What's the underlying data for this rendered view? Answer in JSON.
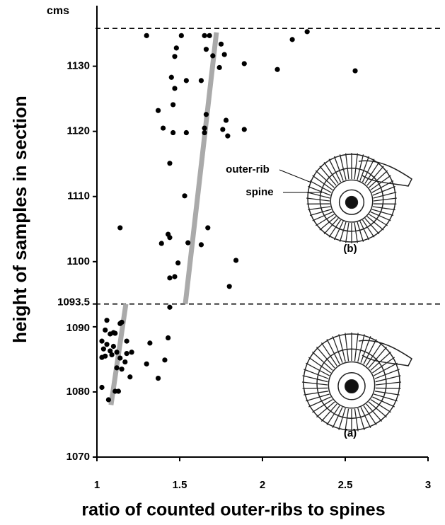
{
  "chart_data": {
    "type": "scatter",
    "y_label": "height of samples in section",
    "x_label": "ratio of counted outer-ribs to spines",
    "y_unit": "cms",
    "annotations": [
      "outer-rib",
      "spine",
      "(b)",
      "(a)"
    ],
    "xlim": [
      1,
      3
    ],
    "ylim": [
      1070,
      1139.3
    ],
    "xticks": [
      1,
      1.5,
      2,
      2.5,
      3
    ],
    "yticks": [
      1070,
      1080,
      1090,
      1093.5,
      1100,
      1110,
      1120,
      1130
    ],
    "hlines": [
      1093.5,
      1135.8
    ],
    "color": "#000000",
    "trend_color": "#aaaaaa",
    "trend_lines": [
      {
        "x": [
          1.085,
          1.175
        ],
        "y": [
          1078,
          1093.5
        ]
      },
      {
        "x": [
          1.534,
          1.722
        ],
        "y": [
          1093.5,
          1135.2
        ]
      }
    ],
    "x": [
      1.03,
      1.07,
      1.06,
      1.05,
      1.08,
      1.1,
      1.11,
      1.14,
      1.15,
      1.03,
      1.06,
      1.1,
      1.18,
      1.04,
      1.08,
      1.12,
      1.03,
      1.05,
      1.09,
      1.14,
      1.18,
      1.21,
      1.17,
      1.12,
      1.15,
      1.2,
      1.11,
      1.13,
      1.32,
      1.3,
      1.41,
      1.43,
      1.37,
      1.44,
      1.3,
      1.51,
      1.65,
      1.68,
      1.48,
      1.47,
      1.66,
      1.75,
      1.77,
      1.7,
      1.74,
      1.89,
      1.45,
      1.47,
      1.54,
      1.63,
      2.09,
      2.56,
      2.18,
      2.27,
      1.46,
      1.37,
      1.4,
      1.46,
      1.54,
      1.65,
      1.66,
      1.65,
      1.76,
      1.78,
      1.79,
      1.89,
      1.44,
      1.53,
      1.14,
      1.67,
      1.43,
      1.44,
      1.39,
      1.55,
      1.63,
      1.84,
      1.49,
      1.44,
      1.47,
      1.8
    ],
    "y": [
      1080.7,
      1078.8,
      1091.0,
      1089.5,
      1088.9,
      1089.1,
      1089.0,
      1090.5,
      1090.7,
      1087.8,
      1087.3,
      1087.0,
      1087.8,
      1086.6,
      1086.3,
      1086.1,
      1085.3,
      1085.5,
      1085.7,
      1085.2,
      1085.9,
      1086.1,
      1084.6,
      1083.7,
      1083.5,
      1082.3,
      1080.1,
      1080.1,
      1087.5,
      1084.3,
      1084.9,
      1088.3,
      1082.1,
      1093.0,
      1134.7,
      1134.7,
      1134.7,
      1134.7,
      1132.8,
      1131.5,
      1132.6,
      1133.4,
      1131.8,
      1131.6,
      1129.8,
      1130.4,
      1128.3,
      1126.6,
      1127.8,
      1127.8,
      1129.5,
      1129.3,
      1134.1,
      1135.3,
      1124.1,
      1123.2,
      1120.5,
      1119.8,
      1119.8,
      1120.5,
      1122.6,
      1119.8,
      1120.3,
      1121.7,
      1119.3,
      1120.3,
      1115.1,
      1110.1,
      1105.2,
      1105.2,
      1104.2,
      1103.7,
      1102.8,
      1102.9,
      1102.6,
      1100.2,
      1099.8,
      1097.5,
      1097.7,
      1096.2
    ]
  }
}
